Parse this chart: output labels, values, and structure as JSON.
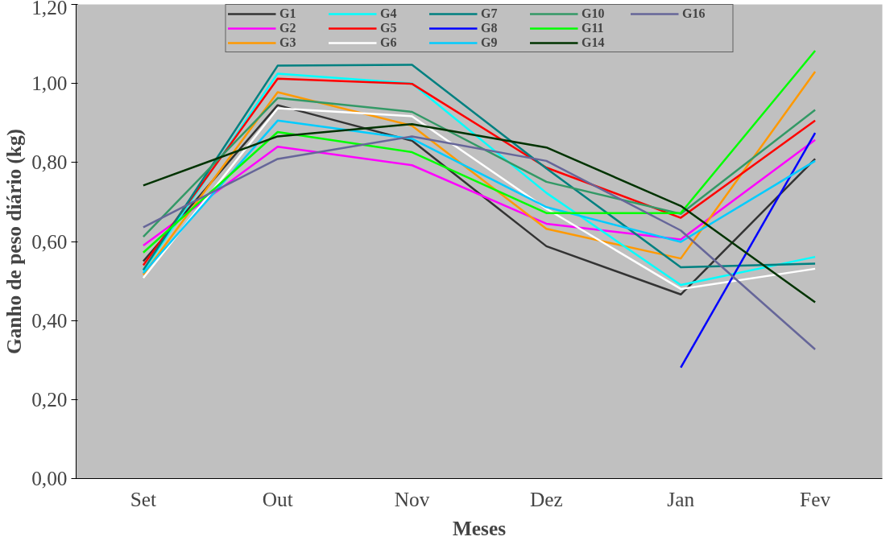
{
  "chart_data": {
    "type": "line",
    "xlabel": "Meses",
    "ylabel": "Ganho de peso diário (kg)",
    "categories": [
      "Set",
      "Out",
      "Nov",
      "Dez",
      "Jan",
      "Fev"
    ],
    "ylim": [
      0,
      1.2
    ],
    "yticks": [
      {
        "value": 0,
        "label": "0,00"
      },
      {
        "value": 0.2,
        "label": "0,20"
      },
      {
        "value": 0.4,
        "label": "0,40"
      },
      {
        "value": 0.6,
        "label": "0,60"
      },
      {
        "value": 0.8,
        "label": "0,80"
      },
      {
        "value": 1.0,
        "label": "1,00"
      },
      {
        "value": 1.2,
        "label": "1,20"
      }
    ],
    "grid": false,
    "legend": "top",
    "marker": "none",
    "line_style": "solid",
    "series": [
      {
        "name": "G1",
        "color": "#333333",
        "values": [
          0.55,
          0.945,
          0.855,
          0.588,
          0.466,
          0.809
        ]
      },
      {
        "name": "G2",
        "color": "#ff00ff",
        "values": [
          0.59,
          0.84,
          0.793,
          0.645,
          0.605,
          0.857
        ]
      },
      {
        "name": "G3",
        "color": "#ff9900",
        "values": [
          0.516,
          0.978,
          0.893,
          0.632,
          0.557,
          1.03
        ]
      },
      {
        "name": "G4",
        "color": "#00ffff",
        "values": [
          0.525,
          1.025,
          1.0,
          0.723,
          0.49,
          0.561
        ]
      },
      {
        "name": "G5",
        "color": "#ff0000",
        "values": [
          0.54,
          1.012,
          0.999,
          0.787,
          0.66,
          0.906
        ]
      },
      {
        "name": "G6",
        "color": "#ffffff",
        "values": [
          0.508,
          0.937,
          0.917,
          0.683,
          0.48,
          0.531
        ]
      },
      {
        "name": "G7",
        "color": "#008080",
        "values": [
          0.528,
          1.045,
          1.047,
          0.785,
          0.535,
          0.544
        ]
      },
      {
        "name": "G8",
        "color": "#0000ff",
        "values": [
          null,
          null,
          null,
          null,
          0.281,
          0.875
        ]
      },
      {
        "name": "G9",
        "color": "#00ccff",
        "values": [
          0.52,
          0.906,
          0.86,
          0.687,
          0.599,
          0.804
        ]
      },
      {
        "name": "G10",
        "color": "#339966",
        "values": [
          0.612,
          0.963,
          0.928,
          0.751,
          0.67,
          0.933
        ]
      },
      {
        "name": "G11",
        "color": "#00ff00",
        "values": [
          0.572,
          0.877,
          0.826,
          0.672,
          0.672,
          1.083
        ]
      },
      {
        "name": "G14",
        "color": "#003300",
        "values": [
          0.742,
          0.866,
          0.897,
          0.838,
          0.69,
          0.446
        ]
      },
      {
        "name": "G16",
        "color": "#666699",
        "values": [
          0.636,
          0.809,
          0.866,
          0.804,
          0.628,
          0.327
        ]
      }
    ]
  }
}
